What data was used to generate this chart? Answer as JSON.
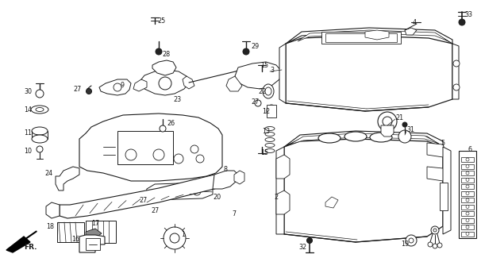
{
  "bg_color": "#ffffff",
  "line_color": "#1a1a1a",
  "fig_width": 6.06,
  "fig_height": 3.2,
  "dpi": 100
}
